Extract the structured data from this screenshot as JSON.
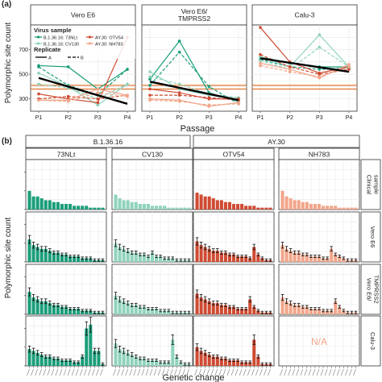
{
  "panel_a": {
    "label": "(a)",
    "ylabel": "Polymorphic site count",
    "xlabel": "Passage",
    "facets": [
      "Vero E6",
      "Vero E6/\nTMPRSS2",
      "Calu-3"
    ],
    "x_ticks": [
      "P1",
      "P2",
      "P3",
      "P4"
    ],
    "y_ticks": [
      "300",
      "500",
      "700"
    ],
    "legend": {
      "title": "Virus sample",
      "items": [
        "B.1.36.16: 73NLt",
        "B.1.36.16: CV130",
        "AY.30: OTV54",
        "AY.30: NH783"
      ],
      "replicate_title": "Replicate",
      "replicate_items": [
        "A",
        "B"
      ]
    }
  },
  "panel_b": {
    "label": "(b)",
    "ylabel": "Polymorphic site count",
    "xlabel": "Genetic change",
    "groups": [
      "B.1.36.16",
      "AY.30"
    ],
    "columns": [
      "73NLt",
      "CV130",
      "OTV54",
      "NH783"
    ],
    "rows": [
      "Clinical\nsample",
      "Vero E6",
      "Vero E6/\nTMPRSS2",
      "Calu-3"
    ],
    "na_text": "N/A"
  },
  "colors": {
    "c73NLt": "#1a9e7a",
    "cCV130": "#8fd3bd",
    "cOTV54": "#cf4b32",
    "cNH783": "#f2a58a",
    "refline": "#e07830",
    "panel_bg": "#ffffff",
    "grid": "#e6e6e6",
    "strip": "#ececec"
  },
  "chart_data": [
    {
      "type": "line",
      "panel": "a",
      "ylim": [
        200,
        900
      ],
      "x": [
        "P1",
        "P2",
        "P3",
        "P4"
      ],
      "facets": [
        {
          "name": "Vero E6",
          "reference": [
            380,
            410
          ],
          "trend": [
            470,
            260
          ],
          "series": [
            {
              "name": "B.1.36.16: 73NLt",
              "replicate": "A",
              "values": [
                570,
                560,
                380,
                540
              ]
            },
            {
              "name": "B.1.36.16: 73NLt",
              "replicate": "B",
              "values": [
                560,
                410,
                330,
                540
              ]
            },
            {
              "name": "B.1.36.16: CV130",
              "replicate": "A",
              "values": [
                510,
                400,
                250,
                420
              ]
            },
            {
              "name": "B.1.36.16: CV130",
              "replicate": "B",
              "values": [
                420,
                390,
                300,
                420
              ]
            },
            {
              "name": "AY.30: OTV54",
              "replicate": "A",
              "values": [
                340,
                300,
                270,
                800
              ]
            },
            {
              "name": "AY.30: OTV54",
              "replicate": "B",
              "values": [
                300,
                320,
                300,
                330
              ]
            },
            {
              "name": "AY.30: NH783",
              "replicate": "A",
              "values": [
                290,
                290,
                380,
                330
              ]
            },
            {
              "name": "AY.30: NH783",
              "replicate": "B",
              "values": [
                290,
                280,
                350,
                320
              ]
            }
          ]
        },
        {
          "name": "Vero E6/\nTMPRSS2",
          "reference": [
            380,
            410
          ],
          "trend": [
            440,
            290
          ],
          "series": [
            {
              "name": "B.1.36.16: 73NLt",
              "replicate": "A",
              "values": [
                460,
                770,
                350,
                280
              ]
            },
            {
              "name": "B.1.36.16: 73NLt",
              "replicate": "B",
              "values": [
                410,
                680,
                400,
                260
              ]
            },
            {
              "name": "B.1.36.16: CV130",
              "replicate": "A",
              "values": [
                520,
                380,
                330,
                300
              ]
            },
            {
              "name": "B.1.36.16: CV130",
              "replicate": "B",
              "values": [
                480,
                420,
                340,
                310
              ]
            },
            {
              "name": "AY.30: OTV54",
              "replicate": "A",
              "values": [
                380,
                350,
                300,
                300
              ]
            },
            {
              "name": "AY.30: OTV54",
              "replicate": "B",
              "values": [
                330,
                330,
                310,
                290
              ]
            },
            {
              "name": "AY.30: NH783",
              "replicate": "A",
              "values": [
                300,
                290,
                240,
                270
              ]
            },
            {
              "name": "AY.30: NH783",
              "replicate": "B",
              "values": [
                290,
                280,
                250,
                260
              ]
            }
          ]
        },
        {
          "name": "Calu-3",
          "reference": [
            380,
            410
          ],
          "trend": [
            630,
            520
          ],
          "series": [
            {
              "name": "B.1.36.16: 73NLt",
              "replicate": "A",
              "values": [
                640,
                590,
                560,
                560
              ]
            },
            {
              "name": "B.1.36.16: 73NLt",
              "replicate": "B",
              "values": [
                620,
                560,
                540,
                550
              ]
            },
            {
              "name": "B.1.36.16: CV130",
              "replicate": "A",
              "values": [
                640,
                560,
                820,
                560
              ]
            },
            {
              "name": "B.1.36.16: CV130",
              "replicate": "B",
              "values": [
                610,
                540,
                720,
                560
              ]
            },
            {
              "name": "AY.30: OTV54",
              "replicate": "A",
              "values": [
                880,
                600,
                510,
                560
              ]
            },
            {
              "name": "AY.30: OTV54",
              "replicate": "B",
              "values": [
                660,
                560,
                500,
                540
              ]
            },
            {
              "name": "AY.30: NH783",
              "replicate": "A",
              "values": [
                590,
                540,
                470,
                580
              ]
            },
            {
              "name": "AY.30: NH783",
              "replicate": "B",
              "values": [
                570,
                520,
                480,
                560
              ]
            }
          ]
        }
      ]
    },
    {
      "type": "bar",
      "panel": "b",
      "n_categories": 19,
      "error_bars": true,
      "cells": [
        {
          "row": "Clinical\nsample",
          "col": "73NLt",
          "values": [
            10,
            7,
            7,
            6,
            5,
            5,
            4,
            4,
            3,
            3,
            3,
            2,
            2,
            2,
            2,
            1,
            1,
            1,
            1
          ]
        },
        {
          "row": "Clinical\nsample",
          "col": "CV130",
          "values": [
            8,
            6,
            5,
            5,
            4,
            4,
            3,
            3,
            3,
            2,
            2,
            2,
            2,
            1,
            1,
            1,
            1,
            1,
            1
          ]
        },
        {
          "row": "Clinical\nsample",
          "col": "OTV54",
          "values": [
            9,
            8,
            7,
            7,
            6,
            5,
            5,
            4,
            4,
            3,
            3,
            3,
            2,
            2,
            2,
            1,
            1,
            1,
            1
          ]
        },
        {
          "row": "Clinical\nsample",
          "col": "NH783",
          "values": [
            10,
            7,
            6,
            5,
            5,
            4,
            4,
            3,
            3,
            3,
            2,
            2,
            2,
            2,
            1,
            1,
            1,
            1,
            1
          ]
        },
        {
          "row": "Vero E6",
          "col": "73NLt",
          "values": [
            12,
            9,
            8,
            7,
            7,
            6,
            5,
            5,
            4,
            4,
            3,
            3,
            3,
            2,
            2,
            2,
            1,
            1,
            1
          ]
        },
        {
          "row": "Vero E6",
          "col": "CV130",
          "values": [
            10,
            8,
            7,
            6,
            5,
            5,
            4,
            4,
            3,
            5,
            3,
            3,
            2,
            2,
            2,
            1,
            1,
            1,
            1
          ]
        },
        {
          "row": "Vero E6",
          "col": "OTV54",
          "values": [
            11,
            9,
            8,
            7,
            6,
            6,
            5,
            5,
            4,
            4,
            3,
            3,
            3,
            2,
            8,
            4,
            2,
            1,
            1
          ]
        },
        {
          "row": "Vero E6",
          "col": "NH783",
          "values": [
            9,
            7,
            6,
            5,
            5,
            4,
            4,
            3,
            3,
            3,
            2,
            2,
            7,
            4,
            3,
            2,
            1,
            1,
            1
          ]
        },
        {
          "row": "Vero E6/\nTMPRSS2",
          "col": "73NLt",
          "values": [
            12,
            9,
            8,
            7,
            7,
            6,
            5,
            5,
            4,
            4,
            3,
            3,
            3,
            2,
            2,
            2,
            1,
            1,
            1
          ]
        },
        {
          "row": "Vero E6/\nTMPRSS2",
          "col": "CV130",
          "values": [
            10,
            8,
            7,
            6,
            5,
            5,
            4,
            4,
            3,
            3,
            3,
            2,
            2,
            2,
            1,
            1,
            1,
            1,
            1
          ]
        },
        {
          "row": "Vero E6/\nTMPRSS2",
          "col": "OTV54",
          "values": [
            11,
            9,
            8,
            7,
            6,
            6,
            5,
            5,
            4,
            4,
            3,
            3,
            3,
            8,
            4,
            2,
            1,
            1,
            1
          ]
        },
        {
          "row": "Vero E6/\nTMPRSS2",
          "col": "NH783",
          "values": [
            9,
            7,
            6,
            5,
            5,
            4,
            4,
            3,
            3,
            3,
            2,
            2,
            2,
            7,
            4,
            2,
            1,
            1,
            1
          ]
        },
        {
          "row": "Calu-3",
          "col": "73NLt",
          "values": [
            9,
            8,
            7,
            6,
            5,
            5,
            4,
            4,
            3,
            3,
            3,
            2,
            2,
            5,
            20,
            22,
            8,
            8,
            1
          ]
        },
        {
          "row": "Calu-3",
          "col": "CV130",
          "values": [
            12,
            9,
            8,
            7,
            6,
            5,
            4,
            4,
            3,
            3,
            3,
            2,
            2,
            2,
            14,
            5,
            2,
            1,
            1
          ]
        },
        {
          "row": "Calu-3",
          "col": "OTV54",
          "values": [
            10,
            8,
            7,
            6,
            5,
            5,
            4,
            4,
            3,
            3,
            3,
            2,
            2,
            2,
            14,
            5,
            1,
            1,
            1
          ]
        },
        {
          "row": "Calu-3",
          "col": "NH783",
          "values": []
        }
      ]
    }
  ]
}
